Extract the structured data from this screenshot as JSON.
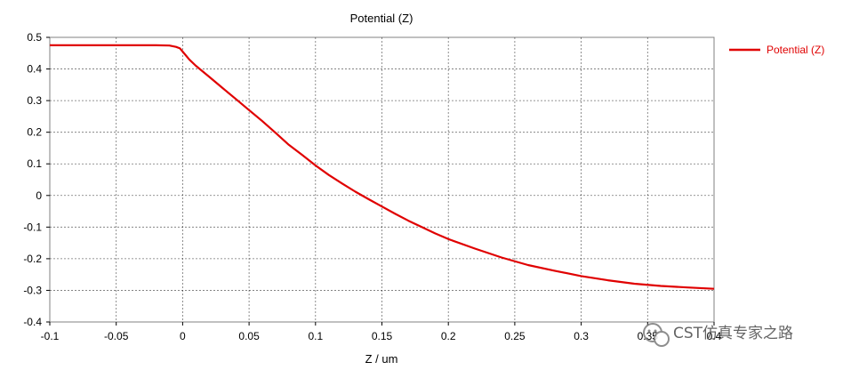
{
  "chart_data": {
    "type": "line",
    "title": "Potential (Z)",
    "xlabel": "Z / um",
    "ylabel": "",
    "xlim": [
      -0.1,
      0.4
    ],
    "ylim": [
      -0.4,
      0.5
    ],
    "xticks": [
      "-0.1",
      "-0.05",
      "0",
      "0.05",
      "0.1",
      "0.15",
      "0.2",
      "0.25",
      "0.3",
      "0.35",
      "0.4"
    ],
    "xtick_values": [
      -0.1,
      -0.05,
      0,
      0.05,
      0.1,
      0.15,
      0.2,
      0.25,
      0.3,
      0.35,
      0.4
    ],
    "yticks": [
      "0.5",
      "0.4",
      "0.3",
      "0.2",
      "0.1",
      "0",
      "-0.1",
      "-0.2",
      "-0.3",
      "-0.4"
    ],
    "ytick_values": [
      0.5,
      0.4,
      0.3,
      0.2,
      0.1,
      0,
      -0.1,
      -0.2,
      -0.3,
      -0.4
    ],
    "grid": true,
    "legend_position": "right",
    "series": [
      {
        "name": "Potential (Z)",
        "color": "#e00000",
        "x": [
          -0.1,
          -0.05,
          -0.02,
          -0.01,
          -0.005,
          -0.002,
          0,
          0.005,
          0.01,
          0.02,
          0.03,
          0.04,
          0.05,
          0.06,
          0.07,
          0.08,
          0.09,
          0.1,
          0.11,
          0.12,
          0.13,
          0.14,
          0.15,
          0.16,
          0.17,
          0.18,
          0.19,
          0.2,
          0.22,
          0.24,
          0.26,
          0.28,
          0.3,
          0.32,
          0.34,
          0.36,
          0.38,
          0.4
        ],
        "y": [
          0.475,
          0.475,
          0.475,
          0.474,
          0.47,
          0.465,
          0.455,
          0.43,
          0.41,
          0.375,
          0.34,
          0.305,
          0.27,
          0.235,
          0.198,
          0.16,
          0.128,
          0.095,
          0.065,
          0.038,
          0.012,
          -0.012,
          -0.035,
          -0.058,
          -0.08,
          -0.1,
          -0.12,
          -0.138,
          -0.168,
          -0.196,
          -0.22,
          -0.238,
          -0.255,
          -0.268,
          -0.279,
          -0.286,
          -0.291,
          -0.295
        ]
      }
    ]
  },
  "watermark": {
    "text": "CST仿真专家之路",
    "icon": "wechat-icon"
  }
}
